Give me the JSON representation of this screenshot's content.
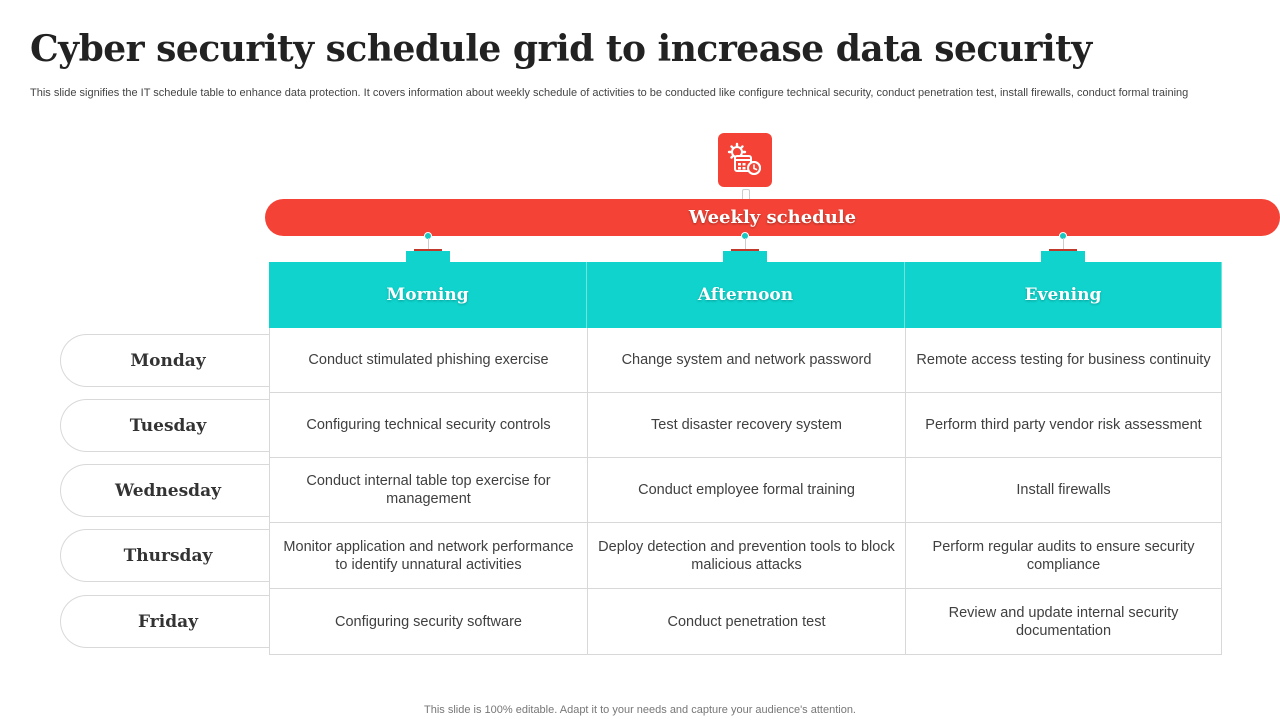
{
  "title": "Cyber security schedule grid to increase data security",
  "subtitle": "This slide signifies the IT schedule table to enhance data protection. It covers information about weekly schedule of activities to be conducted like configure technical security, conduct penetration test, install firewalls, conduct formal training",
  "icon": "calendar-gear-icon",
  "weekly_label": "Weekly schedule",
  "columns": [
    "Morning",
    "Afternoon",
    "Evening"
  ],
  "days": [
    "Monday",
    "Tuesday",
    "Wednesday",
    "Thursday",
    "Friday"
  ],
  "rows": [
    [
      "Conduct stimulated phishing exercise",
      "Change system and network password",
      "Remote access testing for business continuity"
    ],
    [
      "Configuring technical security controls",
      "Test disaster recovery system",
      "Perform third party vendor risk assessment"
    ],
    [
      "Conduct internal table top exercise for management",
      "Conduct employee formal training",
      "Install firewalls"
    ],
    [
      "Monitor application and network performance to identify unnatural activities",
      "Deploy detection and prevention tools to block malicious attacks",
      "Perform regular audits to ensure security compliance"
    ],
    [
      "Configuring security software",
      "Conduct penetration test",
      "Review  and update  internal security documentation"
    ]
  ],
  "footer": "This slide is 100% editable. Adapt it to your needs and capture your audience's attention.",
  "colors": {
    "accent_red": "#f44336",
    "accent_teal": "#0fd3cc"
  }
}
